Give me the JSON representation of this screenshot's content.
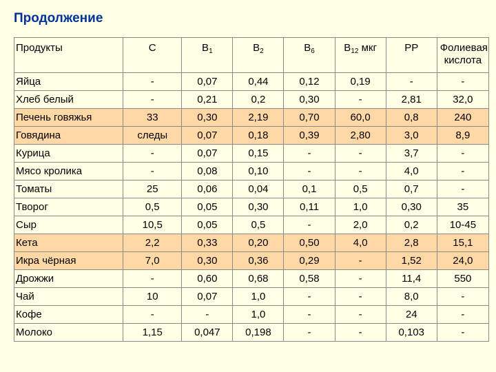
{
  "title": "Продолжение",
  "header": {
    "products": "Продукты",
    "c": "С",
    "b1_base": "В",
    "b1_sub": "1",
    "b2_base": "В",
    "b2_sub": "2",
    "b6_base": "В",
    "b6_sub": "6",
    "b12_base": "В",
    "b12_sub": "12",
    "b12_unit": " мкг",
    "pp": "РР",
    "folic": "Фолиевая кислота"
  },
  "rows": [
    {
      "name": "Яйца",
      "values": [
        "-",
        "0,07",
        "0,44",
        "0,12",
        "0,19",
        "-",
        "-"
      ],
      "highlight": false
    },
    {
      "name": "Хлеб белый",
      "values": [
        "-",
        "0,21",
        "0,2",
        "0,30",
        "-",
        "2,81",
        "32,0"
      ],
      "highlight": false
    },
    {
      "name": "Печень говяжья",
      "values": [
        "33",
        "0,30",
        "2,19",
        "0,70",
        "60,0",
        "0,8",
        "240"
      ],
      "highlight": true
    },
    {
      "name": "Говядина",
      "values": [
        "следы",
        "0,07",
        "0,18",
        "0,39",
        "2,80",
        "3,0",
        "8,9"
      ],
      "highlight": true
    },
    {
      "name": "Курица",
      "values": [
        "-",
        "0,07",
        "0,15",
        "-",
        "-",
        "3,7",
        "-"
      ],
      "highlight": false
    },
    {
      "name": "Мясо кролика",
      "values": [
        "-",
        "0,08",
        "0,10",
        "-",
        "-",
        "4,0",
        "-"
      ],
      "highlight": false
    },
    {
      "name": "Томаты",
      "values": [
        "25",
        "0,06",
        "0,04",
        "0,1",
        "0,5",
        "0,7",
        "-"
      ],
      "highlight": false
    },
    {
      "name": "Творог",
      "values": [
        "0,5",
        "0,05",
        "0,30",
        "0,11",
        "1,0",
        "0,30",
        "35"
      ],
      "highlight": false
    },
    {
      "name": "Сыр",
      "values": [
        "10,5",
        "0,05",
        "0,5",
        "-",
        "2,0",
        "0,2",
        "10-45"
      ],
      "highlight": false
    },
    {
      "name": "Кета",
      "values": [
        "2,2",
        "0,33",
        "0,20",
        "0,50",
        "4,0",
        "2,8",
        "15,1"
      ],
      "highlight": true
    },
    {
      "name": "Икра чёрная",
      "values": [
        "7,0",
        "0,30",
        "0,36",
        "0,29",
        "-",
        "1,52",
        "24,0"
      ],
      "highlight": true
    },
    {
      "name": "Дрожжи",
      "values": [
        "-",
        "0,60",
        "0,68",
        "0,58",
        "-",
        "11,4",
        "550"
      ],
      "highlight": false
    },
    {
      "name": "Чай",
      "values": [
        "10",
        "0,07",
        "1,0",
        "-",
        "-",
        "8,0",
        "-"
      ],
      "highlight": false
    },
    {
      "name": "Кофе",
      "values": [
        "-",
        "-",
        "1,0",
        "-",
        "-",
        "24",
        "-"
      ],
      "highlight": false
    },
    {
      "name": "Молоко",
      "values": [
        "1,15",
        "0,047",
        "0,198",
        "-",
        "-",
        "0,103",
        "-"
      ],
      "highlight": false
    }
  ],
  "colors": {
    "background": "#FFFFE6",
    "title": "#003399",
    "highlight_row": "#FFD8A6",
    "border": "#8A8A8A"
  }
}
